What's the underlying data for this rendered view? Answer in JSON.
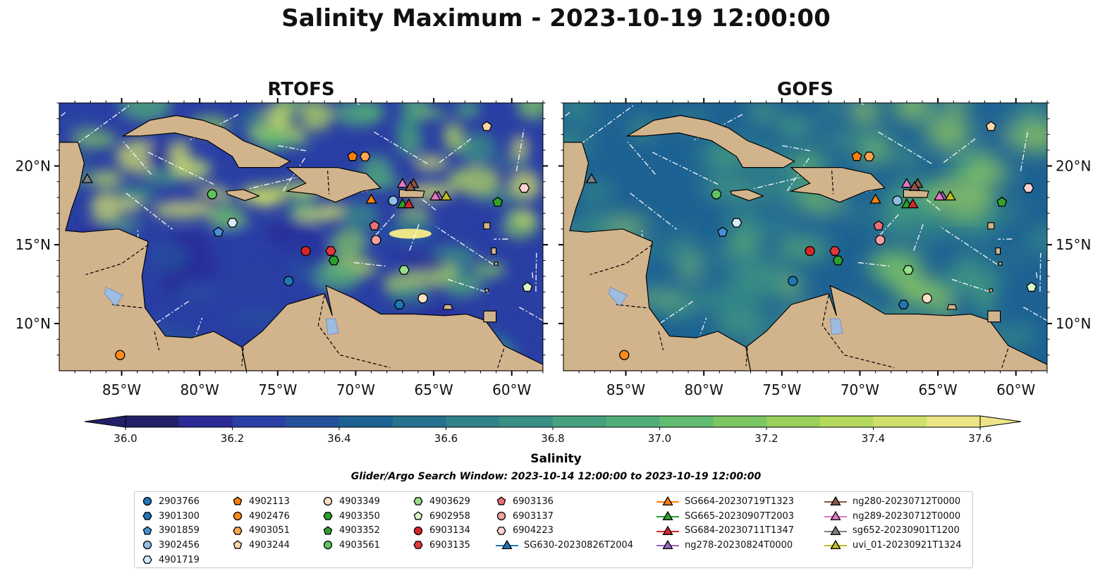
{
  "title": "Salinity Maximum - 2023-10-19 12:00:00",
  "panels": [
    {
      "title": "RTOFS",
      "style": "rtofs"
    },
    {
      "title": "GOFS",
      "style": "gofs"
    }
  ],
  "axes": {
    "lon_ticks": [
      "85°W",
      "80°W",
      "75°W",
      "70°W",
      "65°W",
      "60°W"
    ],
    "lat_ticks": [
      "20°N",
      "15°N",
      "10°N"
    ],
    "lon_range": [
      -89,
      -58
    ],
    "lat_range": [
      7,
      24
    ]
  },
  "colorbar": {
    "label": "Salinity",
    "ticks": [
      "36.0",
      "36.2",
      "36.4",
      "36.6",
      "36.8",
      "37.0",
      "37.2",
      "37.4",
      "37.6"
    ],
    "vmin": 36.0,
    "vmax": 37.6,
    "step": 0.1,
    "colors": [
      "#23206a",
      "#2a2a96",
      "#2a3fa4",
      "#25519c",
      "#1d6293",
      "#26728e",
      "#308189",
      "#3a8f85",
      "#47a07e",
      "#52ae78",
      "#62bb6e",
      "#7dc664",
      "#98cf5d",
      "#b5d95d",
      "#d1e06a",
      "#ede588"
    ],
    "extend": "both"
  },
  "search_window": "Glider/Argo Search Window: 2023-10-14 12:00:00 to 2023-10-19 12:00:00",
  "legend": [
    {
      "label": "2903766",
      "marker": "circle",
      "color": "#1f77b4"
    },
    {
      "label": "3901300",
      "marker": "hexagon",
      "color": "#1f77b4"
    },
    {
      "label": "3901859",
      "marker": "pentagon",
      "color": "#4a90d9"
    },
    {
      "label": "3902456",
      "marker": "circle",
      "color": "#8fbfe8"
    },
    {
      "label": "4901719",
      "marker": "hexagon",
      "color": "#d6ebf8"
    },
    {
      "label": "4902113",
      "marker": "pentagon",
      "color": "#ff7f0e"
    },
    {
      "label": "4902476",
      "marker": "circle",
      "color": "#ff8c1a"
    },
    {
      "label": "4903051",
      "marker": "hexagon",
      "color": "#ffa54f"
    },
    {
      "label": "4903244",
      "marker": "pentagon",
      "color": "#ffd8a8"
    },
    {
      "label": "4903349",
      "marker": "circle",
      "color": "#ffe2c6"
    },
    {
      "label": "4903350",
      "marker": "hexagon",
      "color": "#2ca02c"
    },
    {
      "label": "4903352",
      "marker": "pentagon",
      "color": "#33a02c"
    },
    {
      "label": "4903561",
      "marker": "circle",
      "color": "#5fc35f"
    },
    {
      "label": "4903629",
      "marker": "hexagon",
      "color": "#98df8a"
    },
    {
      "label": "6902958",
      "marker": "pentagon",
      "color": "#d9f7c9"
    },
    {
      "label": "6903134",
      "marker": "circle",
      "color": "#d62728"
    },
    {
      "label": "6903135",
      "marker": "hexagon",
      "color": "#e0383a"
    },
    {
      "label": "6903136",
      "marker": "pentagon",
      "color": "#e8707a"
    },
    {
      "label": "6903137",
      "marker": "circle",
      "color": "#f4a0a0"
    },
    {
      "label": "6904223",
      "marker": "hexagon",
      "color": "#fcd2d2"
    },
    {
      "label": "SG630-20230826T2004",
      "marker": "triangle-line",
      "color": "#1f77b4"
    },
    {
      "label": "SG664-20230719T1323",
      "marker": "triangle-line",
      "color": "#ff7f0e"
    },
    {
      "label": "SG665-20230907T2003",
      "marker": "triangle-line",
      "color": "#2ca02c"
    },
    {
      "label": "SG684-20230711T1347",
      "marker": "triangle-line",
      "color": "#d62728"
    },
    {
      "label": "ng278-20230824T0000",
      "marker": "triangle-line",
      "color": "#9467bd"
    },
    {
      "label": "ng280-20230712T0000",
      "marker": "triangle-line",
      "color": "#8c564b"
    },
    {
      "label": "ng289-20230712T0000",
      "marker": "triangle-line",
      "color": "#e377c2"
    },
    {
      "label": "sg652-20230901T1200",
      "marker": "triangle-line",
      "color": "#7f7f7f"
    },
    {
      "label": "uvi_01-20230921T1324",
      "marker": "triangle-line",
      "color": "#bcbd22"
    }
  ],
  "legend_columns": [
    [
      0,
      1,
      2,
      3,
      4
    ],
    [
      5,
      6,
      7,
      8
    ],
    [
      9,
      10,
      11,
      12
    ],
    [
      13,
      14,
      15,
      16
    ],
    [
      17,
      18,
      19,
      20
    ],
    [
      21,
      22,
      23,
      24
    ],
    [
      25,
      26,
      27,
      28
    ]
  ],
  "map_markers": [
    {
      "id": "2903766",
      "lon": -74.3,
      "lat": 12.7
    },
    {
      "id": "3901300",
      "lon": -67.2,
      "lat": 11.2
    },
    {
      "id": "3901859",
      "lon": -78.8,
      "lat": 15.8
    },
    {
      "id": "3902456",
      "lon": -67.6,
      "lat": 17.8
    },
    {
      "id": "4901719",
      "lon": -77.9,
      "lat": 16.4
    },
    {
      "id": "4902113",
      "lon": -70.2,
      "lat": 20.6
    },
    {
      "id": "4902476",
      "lon": -85.1,
      "lat": 8.0
    },
    {
      "id": "4903051",
      "lon": -69.4,
      "lat": 20.6
    },
    {
      "id": "4903244",
      "lon": -61.6,
      "lat": 22.5
    },
    {
      "id": "4903349",
      "lon": -65.7,
      "lat": 11.6
    },
    {
      "id": "4903350",
      "lon": -71.4,
      "lat": 14.0
    },
    {
      "id": "4903352",
      "lon": -60.9,
      "lat": 17.7
    },
    {
      "id": "4903561",
      "lon": -79.2,
      "lat": 18.2
    },
    {
      "id": "4903629",
      "lon": -66.9,
      "lat": 13.4
    },
    {
      "id": "6902958",
      "lon": -59.0,
      "lat": 12.3
    },
    {
      "id": "6903134",
      "lon": -73.2,
      "lat": 14.6
    },
    {
      "id": "6903135",
      "lon": -71.6,
      "lat": 14.6
    },
    {
      "id": "6903136",
      "lon": -68.8,
      "lat": 16.2
    },
    {
      "id": "6903137",
      "lon": -68.7,
      "lat": 15.3
    },
    {
      "id": "6904223",
      "lon": -59.2,
      "lat": 18.6
    },
    {
      "id": "SG664-20230719T1323",
      "lon": -69.0,
      "lat": 17.9
    },
    {
      "id": "SG665-20230907T2003",
      "lon": -67.0,
      "lat": 17.6
    },
    {
      "id": "SG684-20230711T1347",
      "lon": -66.6,
      "lat": 17.6
    },
    {
      "id": "ng278-20230824T0000",
      "lon": -64.7,
      "lat": 18.1
    },
    {
      "id": "ng280-20230712T0000",
      "lon": -66.3,
      "lat": 18.9
    },
    {
      "id": "ng289-20230712T0000",
      "lon": -67.0,
      "lat": 18.9
    },
    {
      "id": "sg652-20230901T1200",
      "lon": -87.2,
      "lat": 19.2
    },
    {
      "id": "uvi_01-20230921T1324",
      "lon": -64.2,
      "lat": 18.1
    },
    {
      "id": "ng289-b",
      "lon": -64.9,
      "lat": 18.1
    },
    {
      "id": "ng280-b",
      "lon": -66.5,
      "lat": 18.7
    }
  ],
  "fields": {
    "rtofs": {
      "base": "#2a3fa4",
      "hot": "#ede588"
    },
    "gofs": {
      "base": "#1d6293",
      "hot": "#98cf5d"
    }
  }
}
